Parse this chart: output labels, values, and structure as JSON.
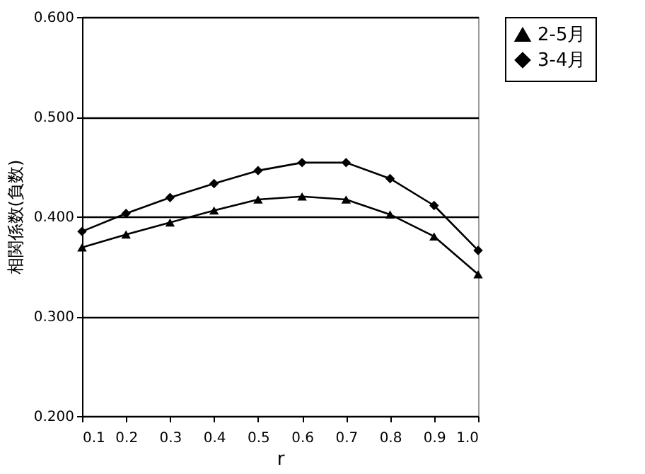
{
  "chart_data": {
    "type": "line",
    "xlabel": "r",
    "ylabel": "相関係数(負数)",
    "x": [
      0.1,
      0.2,
      0.3,
      0.4,
      0.5,
      0.6,
      0.7,
      0.8,
      0.9,
      1.0
    ],
    "series": [
      {
        "name": "2-5月",
        "color": "#000000",
        "marker": "triangle",
        "values": [
          0.369,
          0.382,
          0.394,
          0.406,
          0.417,
          0.42,
          0.417,
          0.402,
          0.38,
          0.342
        ]
      },
      {
        "name": "3-4月",
        "color": "#000000",
        "marker": "diamond",
        "values": [
          0.385,
          0.403,
          0.419,
          0.433,
          0.446,
          0.454,
          0.454,
          0.438,
          0.411,
          0.366
        ]
      }
    ],
    "xlim": [
      0.1,
      1.0
    ],
    "xticks": [
      0.1,
      0.2,
      0.3,
      0.4,
      0.5,
      0.6,
      0.7,
      0.8,
      0.9,
      {
        "value": 1.0,
        "label": "1.0"
      }
    ],
    "ylim": [
      0.2,
      0.6
    ],
    "yticks": [
      {
        "value": 0.2,
        "label": "0.200"
      },
      {
        "value": 0.3,
        "label": "0.300"
      },
      {
        "value": 0.4,
        "label": "0.400"
      },
      {
        "value": 0.5,
        "label": "0.500"
      },
      {
        "value": 0.6,
        "label": "0.600"
      }
    ],
    "grid": "y",
    "legend": "right",
    "line_style": "solid"
  }
}
